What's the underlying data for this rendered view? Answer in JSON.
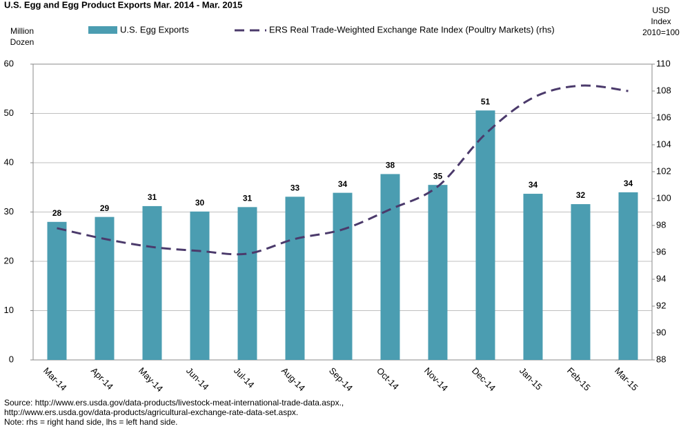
{
  "chart_data": {
    "type": "bar_line",
    "title": "U.S. Egg and Egg Product Exports Mar. 2014 - Mar. 2015",
    "ylabel": [
      "Million",
      "Dozen"
    ],
    "y2label": [
      "USD",
      "Index",
      "2010=100"
    ],
    "categories": [
      "Mar-14",
      "Apr-14",
      "May-14",
      "Jun-14",
      "Jul-14",
      "Aug-14",
      "Sep-14",
      "Oct-14",
      "Nov-14",
      "Dec-14",
      "Jan-15",
      "Feb-15",
      "Mar-15"
    ],
    "series": [
      {
        "name": "U.S. Egg Exports",
        "color": "#4b9db1",
        "values": [
          28,
          29,
          31.2,
          30.1,
          31,
          33.1,
          33.9,
          37.7,
          35.5,
          50.6,
          33.7,
          31.6,
          34
        ],
        "value_labels": [
          "28",
          "29",
          "31",
          "30",
          "31",
          "33",
          "34",
          "38",
          "35",
          "51",
          "34",
          "32",
          "34"
        ]
      },
      {
        "name": "ERS Real Trade-Weighted Exchange Rate Index (Poultry Markets) (rhs)",
        "color": "#4b3a6b",
        "axis": "y2",
        "values": [
          97.8,
          97.0,
          96.4,
          96.1,
          95.9,
          97.0,
          97.7,
          99.2,
          100.9,
          104.8,
          107.5,
          108.4,
          108.0
        ]
      }
    ],
    "ylim": [
      0,
      60
    ],
    "yticks": [
      0,
      10,
      20,
      30,
      40,
      50,
      60
    ],
    "y2lim": [
      88,
      110
    ],
    "y2ticks": [
      88,
      90,
      92,
      94,
      96,
      98,
      100,
      102,
      104,
      106,
      108,
      110
    ],
    "grid": true,
    "notes": [
      "Source: http://www.ers.usda.gov/data-products/livestock-meat-international-trade-data.aspx.,",
      "http://www.ers.usda.gov/data-products/agricultural-exchange-rate-data-set.aspx.",
      "Note: rhs = right hand side, lhs = left hand side."
    ]
  }
}
